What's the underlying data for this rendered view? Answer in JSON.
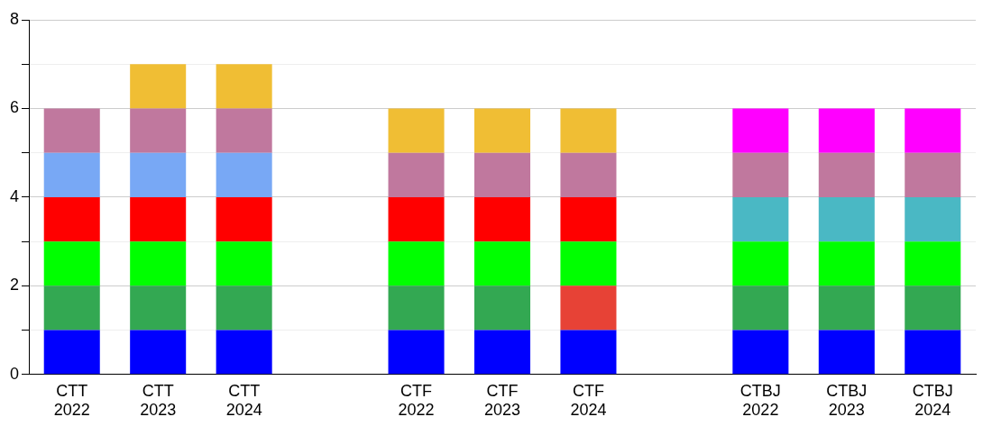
{
  "chart_data": {
    "type": "bar",
    "stacked": true,
    "categories": [
      "CTT 2022",
      "CTT 2023",
      "CTT 2024",
      null,
      "CTF 2022",
      "CTF 2023",
      "CTF 2024",
      null,
      "CTBJ 2022",
      "CTBJ 2023",
      "CTBJ 2024"
    ],
    "series": [
      {
        "color": "#0000ff",
        "values": [
          1,
          1,
          1,
          null,
          1,
          1,
          1,
          null,
          1,
          1,
          1
        ]
      },
      {
        "colors": [
          "#33a852",
          "#33a852",
          "#33a852",
          null,
          "#33a852",
          "#33a852",
          "#e74236",
          null,
          "#33a852",
          "#33a852",
          "#33a852"
        ],
        "values": [
          1,
          1,
          1,
          null,
          1,
          1,
          1,
          null,
          1,
          1,
          1
        ]
      },
      {
        "color": "#00ff00",
        "values": [
          1,
          1,
          1,
          null,
          1,
          1,
          1,
          null,
          1,
          1,
          1
        ]
      },
      {
        "colors": [
          "#ff0000",
          "#ff0000",
          "#ff0000",
          null,
          "#ff0000",
          "#ff0000",
          "#ff0000",
          null,
          "#4ab8c4",
          "#4ab8c4",
          "#4ab8c4"
        ],
        "values": [
          1,
          1,
          1,
          null,
          1,
          1,
          1,
          null,
          1,
          1,
          1
        ]
      },
      {
        "colors": [
          "#78a8f5",
          "#78a8f5",
          "#78a8f5",
          null,
          "#c0789e",
          "#c0789e",
          "#c0789e",
          null,
          "#c0789e",
          "#c0789e",
          "#c0789e"
        ],
        "values": [
          1,
          1,
          1,
          null,
          1,
          1,
          1,
          null,
          1,
          1,
          1
        ]
      },
      {
        "colors": [
          "#c0789e",
          "#c0789e",
          "#c0789e",
          null,
          "#f0be34",
          "#f0be34",
          "#f0be34",
          null,
          "#ff00ff",
          "#ff00ff",
          "#ff00ff"
        ],
        "values": [
          1,
          1,
          1,
          null,
          1,
          1,
          1,
          null,
          1,
          1,
          1
        ]
      },
      {
        "color": "#f0be34",
        "values": [
          null,
          1,
          1,
          null,
          null,
          null,
          null,
          null,
          null,
          null,
          null
        ]
      }
    ],
    "ylim": [
      0,
      8
    ],
    "yticks": [
      0,
      {
        "value": 1,
        "label": null
      },
      2,
      {
        "value": 3,
        "label": null
      },
      4,
      {
        "value": 5,
        "label": null
      },
      6,
      {
        "value": 7,
        "label": null
      },
      8
    ],
    "grid": "y",
    "legend": false
  }
}
